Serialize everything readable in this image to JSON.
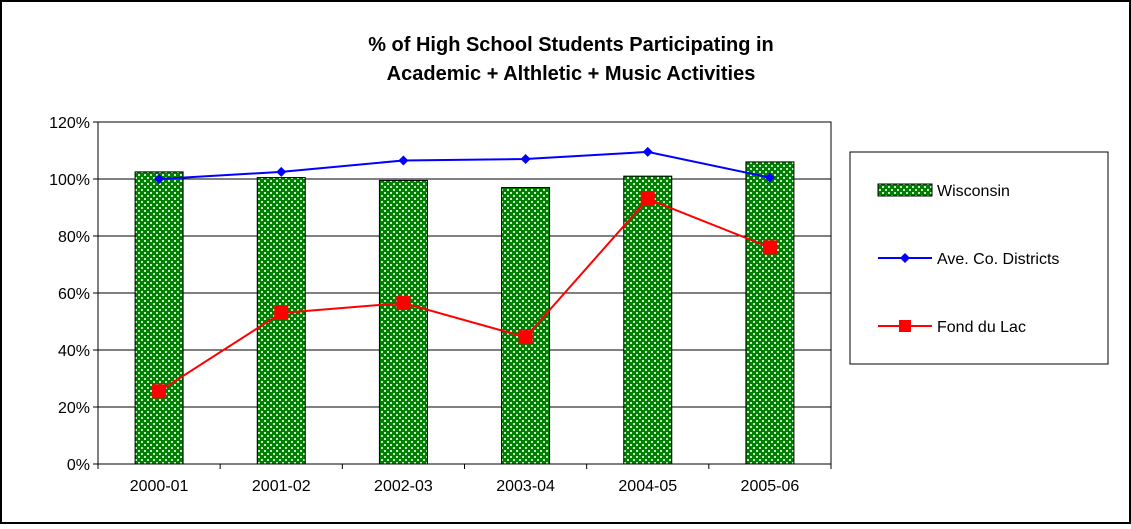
{
  "chart_data": {
    "type": "bar",
    "title_lines": [
      "% of High School Students Participating in",
      "Academic + Althletic + Music Activities"
    ],
    "categories": [
      "2000-01",
      "2001-02",
      "2002-03",
      "2003-04",
      "2004-05",
      "2005-06"
    ],
    "series": [
      {
        "name": "Wisconsin",
        "type": "bar",
        "values": [
          102.5,
          100.5,
          99.5,
          97,
          101,
          106
        ]
      },
      {
        "name": "Ave. Co. Districts",
        "type": "line",
        "marker": "diamond",
        "values": [
          100,
          102.5,
          106.5,
          107,
          109.5,
          100.5
        ]
      },
      {
        "name": "Fond du Lac",
        "type": "line",
        "marker": "square",
        "values": [
          25.5,
          53,
          56.5,
          44.5,
          93,
          76
        ]
      }
    ],
    "y_ticks": [
      "0%",
      "20%",
      "40%",
      "60%",
      "80%",
      "100%",
      "120%"
    ],
    "ylim": [
      0,
      120
    ],
    "grid": true,
    "legend_position": "right",
    "colors": {
      "bar_fill": "#008000",
      "bar_pattern_dot": "#c8e8c8",
      "bar_outline": "#000000",
      "ave_line": "#0000ff",
      "fdl_line": "#ff0000",
      "plot_bg": "#ffffff",
      "grid": "#000000"
    }
  }
}
